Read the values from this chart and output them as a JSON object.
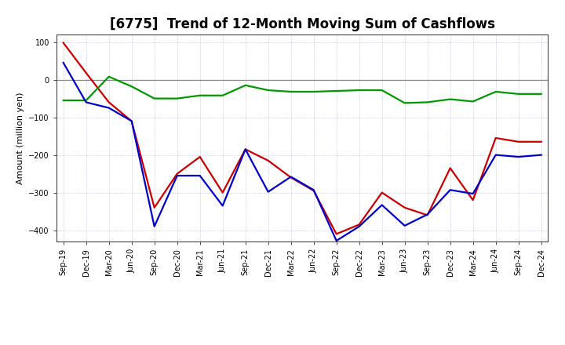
{
  "title": "[6775]  Trend of 12-Month Moving Sum of Cashflows",
  "ylabel": "Amount (million yen)",
  "background_color": "#ffffff",
  "plot_bg_color": "#ffffff",
  "grid_color": "#aaaacc",
  "ylim": [
    -430,
    120
  ],
  "yticks": [
    -400,
    -300,
    -200,
    -100,
    0,
    100
  ],
  "x_labels": [
    "Sep-19",
    "Dec-19",
    "Mar-20",
    "Jun-20",
    "Sep-20",
    "Dec-20",
    "Mar-21",
    "Jun-21",
    "Sep-21",
    "Dec-21",
    "Mar-22",
    "Jun-22",
    "Sep-22",
    "Dec-22",
    "Mar-23",
    "Jun-23",
    "Sep-23",
    "Dec-23",
    "Mar-24",
    "Jun-24",
    "Sep-24",
    "Dec-24"
  ],
  "operating": [
    98,
    18,
    -60,
    -110,
    -340,
    -250,
    -205,
    -300,
    -185,
    -215,
    -260,
    -295,
    -410,
    -385,
    -300,
    -340,
    -360,
    -235,
    -320,
    -155,
    -165,
    -165
  ],
  "investing": [
    -55,
    -55,
    8,
    -18,
    -50,
    -50,
    -42,
    -42,
    -15,
    -28,
    -32,
    -32,
    -30,
    -28,
    -28,
    -62,
    -60,
    -52,
    -58,
    -32,
    -38,
    -38
  ],
  "free": [
    45,
    -60,
    -75,
    -110,
    -390,
    -255,
    -255,
    -335,
    -185,
    -298,
    -258,
    -293,
    -428,
    -390,
    -333,
    -388,
    -358,
    -293,
    -303,
    -200,
    -205,
    -200
  ],
  "op_color": "#cc0000",
  "inv_color": "#009900",
  "free_color": "#0000cc",
  "linewidth": 1.6,
  "title_fontsize": 12,
  "tick_fontsize": 7,
  "ylabel_fontsize": 8,
  "legend_fontsize": 9
}
